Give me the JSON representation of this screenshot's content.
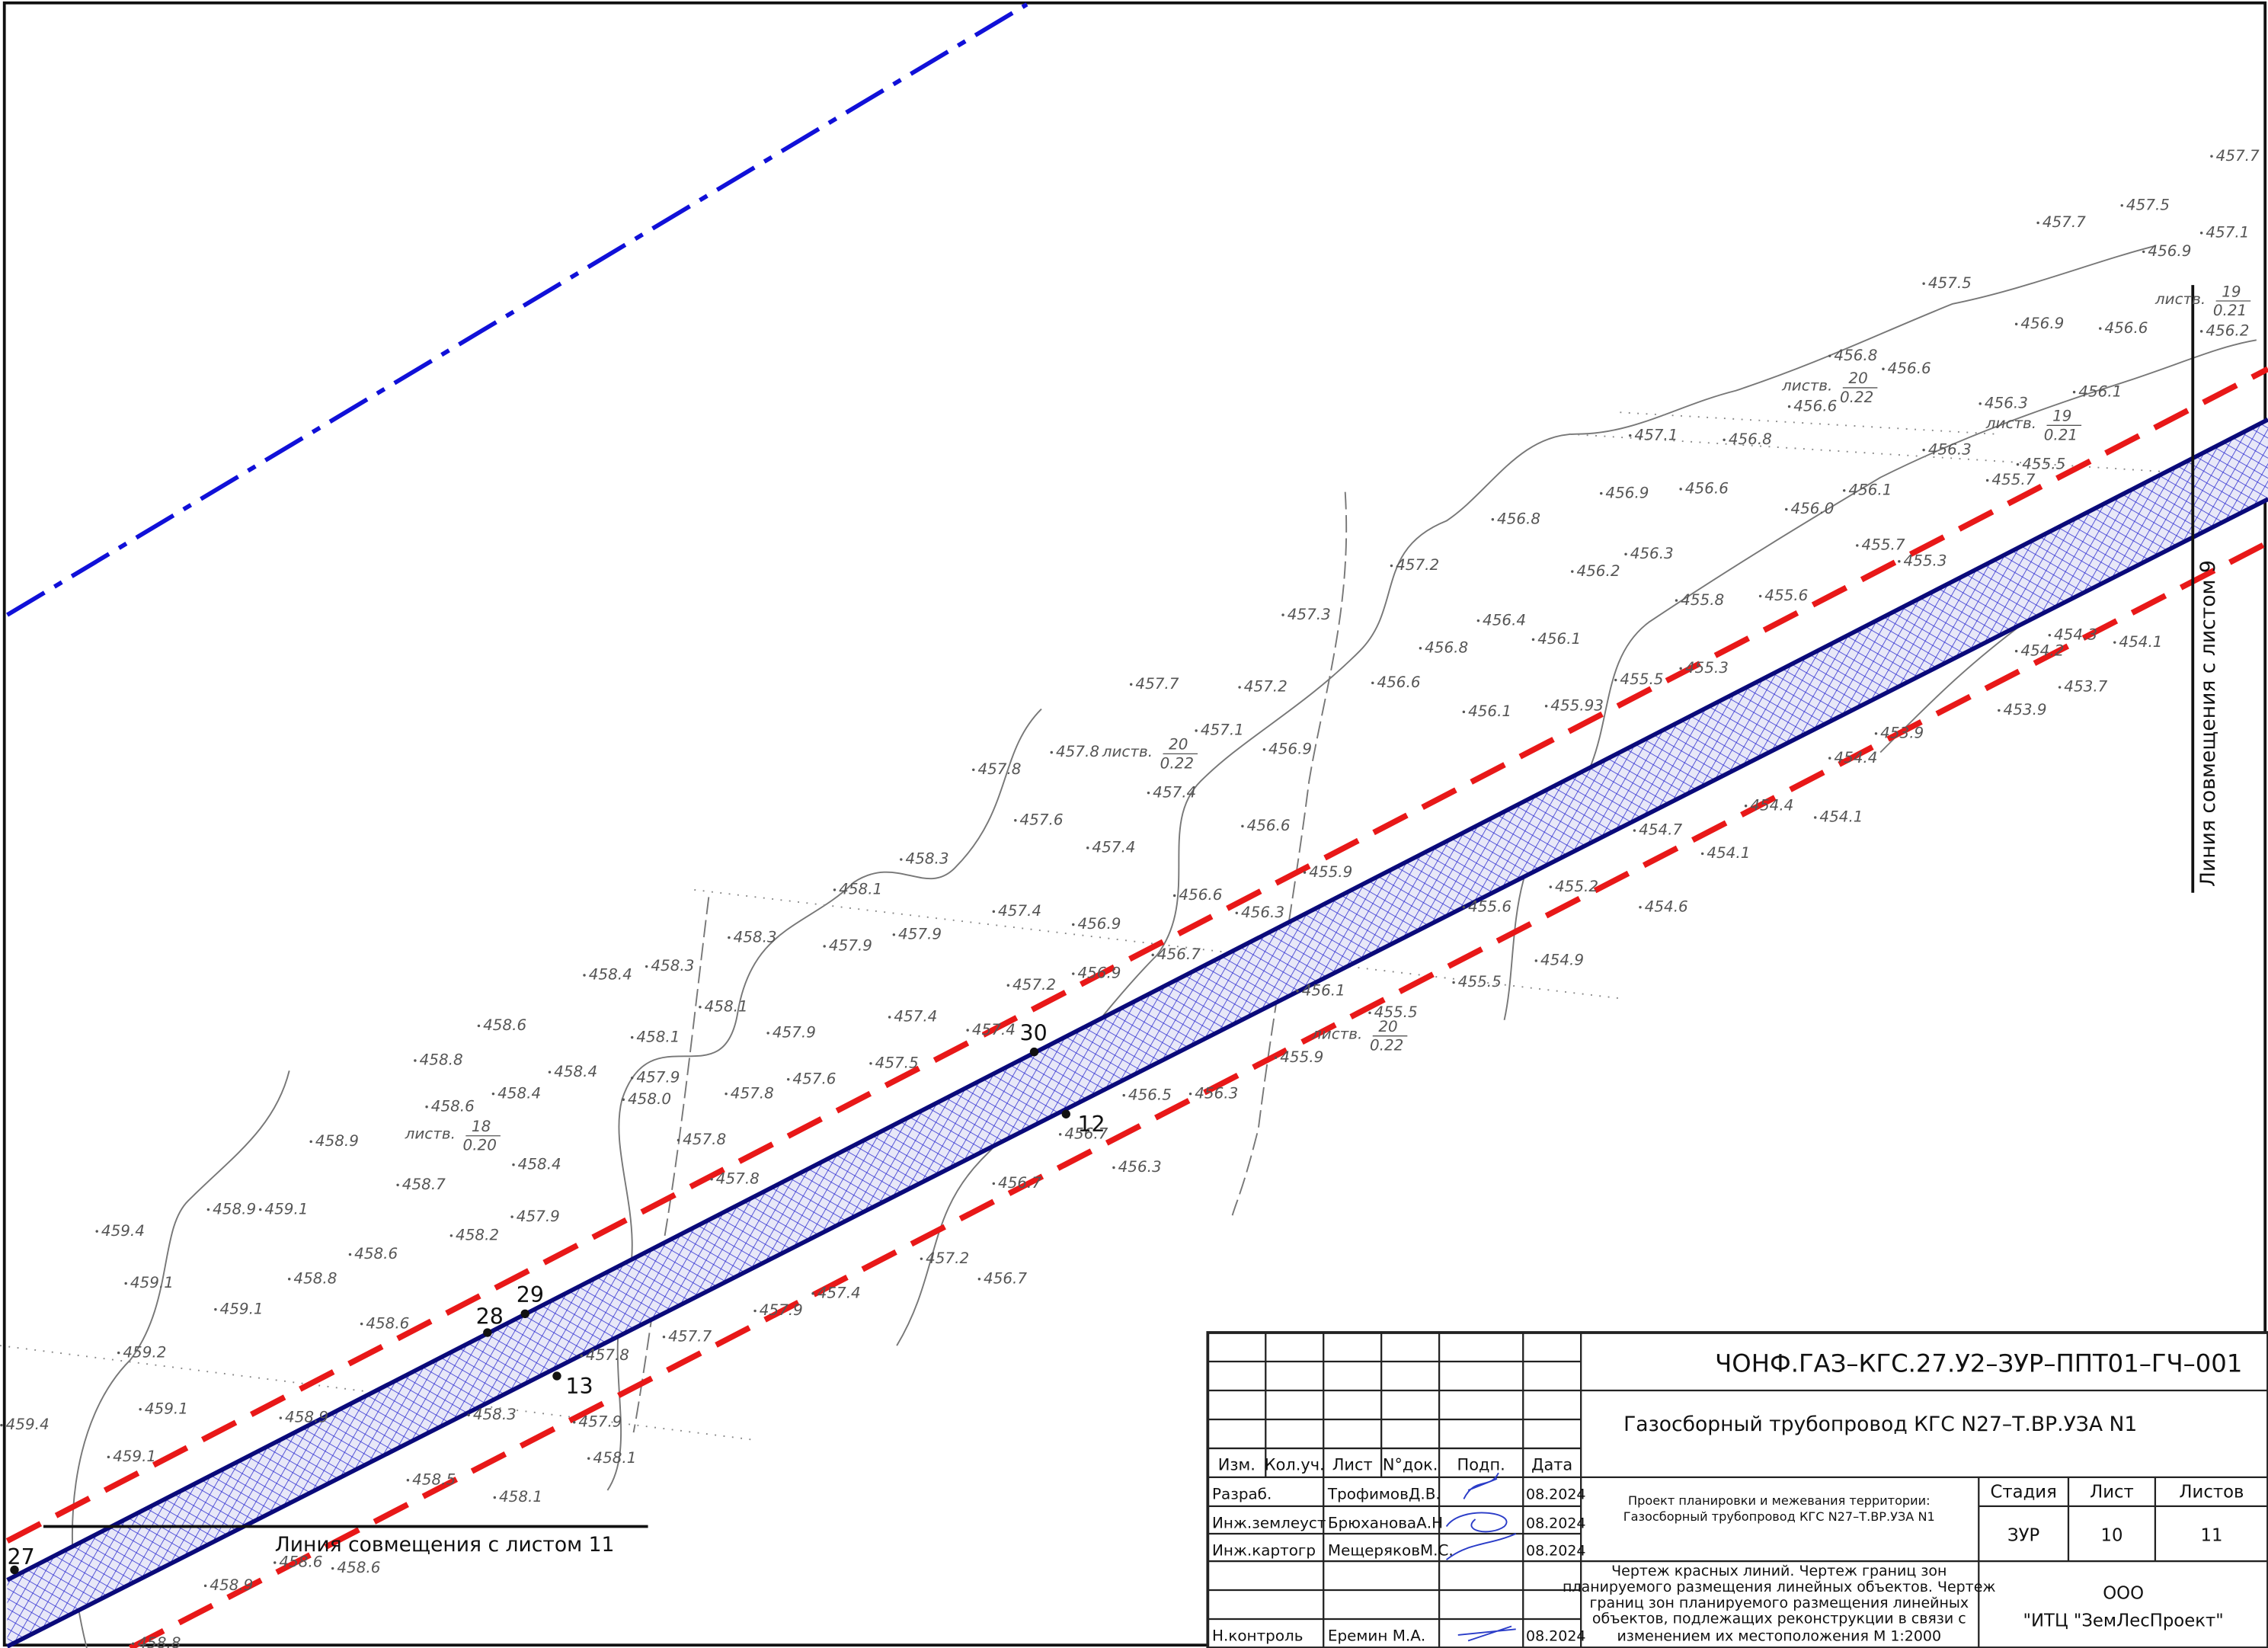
{
  "sheet": {
    "elevations": [
      "457.7",
      "457.5",
      "457.7",
      "457.1",
      "456.9",
      "457.5",
      "456.9",
      "456.6",
      "456.2",
      "456.8",
      "456.6",
      "456.6",
      "456.3",
      "456.1",
      "457.1",
      "456.8",
      "456.3",
      "455.5",
      "455.7",
      "456.9",
      "456.6",
      "456.1",
      "456.0",
      "456.8",
      "455.7",
      "455.3",
      "456.3",
      "456.2",
      "457.2",
      "455.8",
      "455.6",
      "456.4",
      "456.1",
      "456.8",
      "457.3",
      "456.6",
      "455.5",
      "455.3",
      "456.1",
      "455.93",
      "457.7",
      "457.2",
      "457.1",
      "456.9",
      "457.8",
      "457.4",
      "457.8",
      "457.6",
      "457.4",
      "456.6",
      "458.3",
      "458.1",
      "456.6",
      "456.3",
      "457.4",
      "455.9",
      "455.6",
      "455.2",
      "454.6",
      "454.9",
      "455.5",
      "456.9",
      "457.9",
      "458.3",
      "458.3",
      "458.4",
      "457.9",
      "456.7",
      "456.9",
      "457.2",
      "458.1",
      "456.1",
      "458.6",
      "458.1",
      "457.9",
      "457.4",
      "457.4",
      "455.5",
      "455.9",
      "458.8",
      "458.4",
      "457.5",
      "457.9",
      "457.6",
      "458.6",
      "458.4",
      "458.0",
      "457.8",
      "456.5",
      "456.3",
      "458.9",
      "457.8",
      "456.7",
      "458.4",
      "456.3",
      "458.7",
      "457.8",
      "456.7",
      "458.9",
      "459.1",
      "457.9",
      "458.2",
      "458.6",
      "459.4",
      "457.2",
      "456.7",
      "459.1",
      "458.8",
      "459.1",
      "457.4",
      "457.9",
      "458.6",
      "459.2",
      "457.7",
      "457.8",
      "459.1",
      "458.9",
      "458.3",
      "457.9",
      "459.4",
      "459.1",
      "458.1",
      "458.5",
      "458.1",
      "458.6",
      "458.6",
      "458.9",
      "458.8",
      "454.7",
      "454.1",
      "454.4",
      "454.1",
      "454.4",
      "453.9",
      "453.9",
      "453.7",
      "454.2",
      "454.3",
      "454.1"
    ],
    "trees": [
      {
        "label": "листв.",
        "top": "20",
        "bottom": "0.22"
      },
      {
        "label": "листв.",
        "top": "20",
        "bottom": "0.22"
      },
      {
        "label": "листв.",
        "top": "19",
        "bottom": "0.21"
      },
      {
        "label": "листв.",
        "top": "20",
        "bottom": "0.22"
      },
      {
        "label": "листв.",
        "top": "18",
        "bottom": "0.20"
      },
      {
        "label": "листв.",
        "top": "19",
        "bottom": "0.21"
      }
    ],
    "points": [
      "30",
      "12",
      "29",
      "28",
      "13",
      "27"
    ],
    "match_line_9": "Линия совмещения с листом 9",
    "match_line_11": "Линия совмещения с листом 11"
  },
  "title_block": {
    "header": [
      "Изм.",
      "Кол.уч.",
      "Лист",
      "N°док.",
      "Подп.",
      "Дата"
    ],
    "rows": [
      [
        "Разраб.",
        "ТрофимовД.В.",
        "08.2024"
      ],
      [
        "Инж.землеуст",
        "БрюхановаА.Н",
        "08.2024"
      ],
      [
        "Инж.картогр",
        "МещеряковМ.С.",
        "08.2024"
      ],
      [
        "Н.контроль",
        "Еремин М.А.",
        "08.2024"
      ]
    ],
    "code": "ЧОНФ.ГАЗ–КГС.27.У2–ЗУР–ППТ01–ГЧ–001",
    "object": "Газосборный трубопровод КГС N27–Т.ВР.УЗА N1",
    "project": [
      "Проект планировки и межевания территории:",
      "Газосборный трубопровод КГС N27–Т.ВР.УЗА N1"
    ],
    "description": [
      "Чертеж красных линий. Чертеж границ зон",
      "планируемого размещения линейных объектов. Чертеж",
      "границ зон планируемого размещения линейных",
      "объектов, подлежащих реконструкции в связи с",
      "изменением их местоположения М 1:2000"
    ],
    "stage_header": [
      "Стадия",
      "Лист",
      "Листов"
    ],
    "stage_values": [
      "ЗУР",
      "10",
      "11"
    ],
    "company": [
      "ООО",
      "\"ИТЦ \"ЗемЛесПроект\""
    ]
  }
}
